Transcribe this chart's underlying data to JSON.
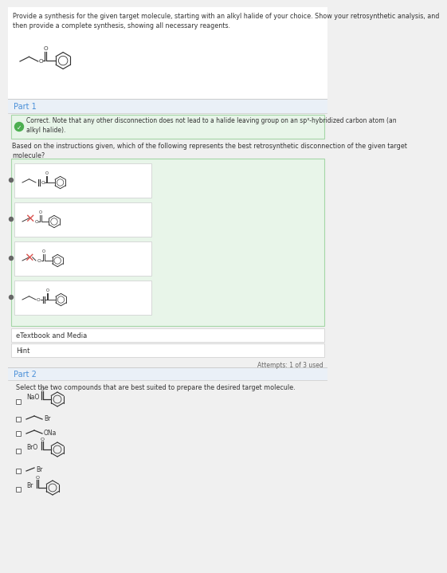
{
  "bg_color": "#f0f0f0",
  "white": "#ffffff",
  "green_bg": "#e8f5e9",
  "green_border": "#b2dfdb",
  "green_check_color": "#4caf50",
  "blue_text": "#4a90d9",
  "dark_text": "#333333",
  "gray_text": "#666666",
  "light_gray": "#cccccc",
  "mid_gray": "#e8e8e8",
  "red_x": "#d9534f",
  "title_text": "Provide a synthesis for the given target molecule, starting with an alkyl halide of your choice. Show your retrosynthetic analysis, and\nthen provide a complete synthesis, showing all necessary reagents.",
  "part1_label": "Part 1",
  "correct_text": "Correct. Note that any other disconnection does not lead to a halide leaving group on an sp³-hybridized carbon atom (an\nalkyl halide).",
  "question_text": "Based on the instructions given, which of the following represents the best retrosynthetic disconnection of the given target\nmolecule?",
  "etextbook": "eTextbook and Media",
  "hint": "Hint",
  "attempts": "Attempts: 1 of 3 used",
  "part2_label": "Part 2",
  "part2_text": "Select the two compounds that are best suited to prepare the desired target molecule."
}
